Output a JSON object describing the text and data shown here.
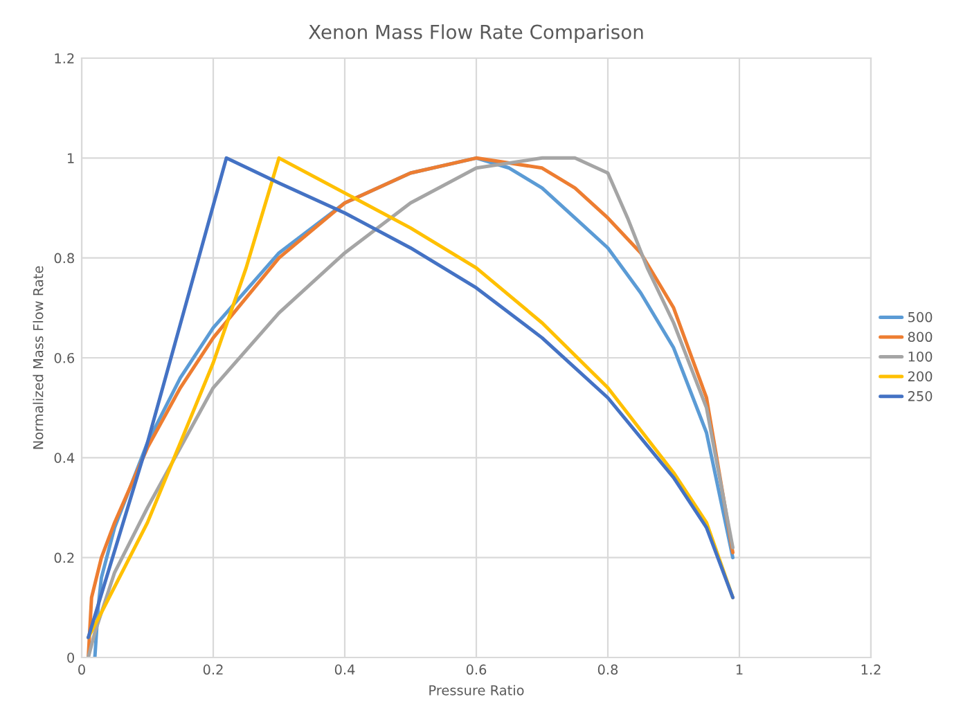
{
  "chart_data": {
    "type": "line",
    "title": "Xenon Mass Flow Rate Comparison",
    "xlabel": "Pressure Ratio",
    "ylabel": "Normalized Mass Flow Rate",
    "xlim": [
      0,
      1.2
    ],
    "xticks": [
      0,
      0.2,
      0.4,
      0.6,
      0.8,
      1,
      1.2
    ],
    "ylim": [
      0,
      1.2
    ],
    "yticks": [
      0,
      0.2,
      0.4,
      0.6,
      0.8,
      1,
      1.2
    ],
    "grid": true,
    "legend": "right",
    "marker": "none",
    "line_style": "solid",
    "series": [
      {
        "name": "500",
        "color": "#5b9bd5",
        "x": [
          0.02,
          0.025,
          0.03,
          0.05,
          0.1,
          0.15,
          0.2,
          0.3,
          0.4,
          0.5,
          0.6,
          0.65,
          0.7,
          0.75,
          0.8,
          0.85,
          0.9,
          0.95,
          0.99
        ],
        "values": [
          0.0,
          0.1,
          0.16,
          0.26,
          0.43,
          0.56,
          0.66,
          0.81,
          0.91,
          0.97,
          1.0,
          0.98,
          0.94,
          0.88,
          0.82,
          0.73,
          0.62,
          0.45,
          0.2
        ]
      },
      {
        "name": "800",
        "color": "#ed7d31",
        "x": [
          0.01,
          0.015,
          0.03,
          0.05,
          0.1,
          0.15,
          0.2,
          0.3,
          0.4,
          0.5,
          0.6,
          0.7,
          0.75,
          0.8,
          0.85,
          0.9,
          0.95,
          0.99
        ],
        "values": [
          0.0,
          0.12,
          0.2,
          0.27,
          0.42,
          0.54,
          0.64,
          0.8,
          0.91,
          0.97,
          1.0,
          0.98,
          0.94,
          0.88,
          0.81,
          0.7,
          0.52,
          0.21
        ]
      },
      {
        "name": "100",
        "color": "#a5a5a5",
        "x": [
          0.01,
          0.02,
          0.05,
          0.1,
          0.2,
          0.3,
          0.4,
          0.5,
          0.6,
          0.7,
          0.75,
          0.8,
          0.83,
          0.86,
          0.9,
          0.95,
          0.99
        ],
        "values": [
          0.0,
          0.05,
          0.17,
          0.3,
          0.54,
          0.69,
          0.81,
          0.91,
          0.98,
          1.0,
          1.0,
          0.97,
          0.88,
          0.78,
          0.67,
          0.5,
          0.22
        ]
      },
      {
        "name": "200",
        "color": "#ffc000",
        "x": [
          0.01,
          0.03,
          0.1,
          0.2,
          0.25,
          0.3,
          0.4,
          0.5,
          0.6,
          0.7,
          0.8,
          0.9,
          0.95,
          0.99
        ],
        "values": [
          0.04,
          0.09,
          0.27,
          0.59,
          0.78,
          1.0,
          0.93,
          0.86,
          0.78,
          0.67,
          0.54,
          0.37,
          0.27,
          0.12
        ]
      },
      {
        "name": "250",
        "color": "#4472c4",
        "x": [
          0.01,
          0.1,
          0.22,
          0.3,
          0.4,
          0.5,
          0.6,
          0.7,
          0.8,
          0.9,
          0.95,
          0.99
        ],
        "values": [
          0.04,
          0.43,
          1.0,
          0.95,
          0.89,
          0.82,
          0.74,
          0.64,
          0.52,
          0.36,
          0.26,
          0.12
        ]
      }
    ]
  }
}
